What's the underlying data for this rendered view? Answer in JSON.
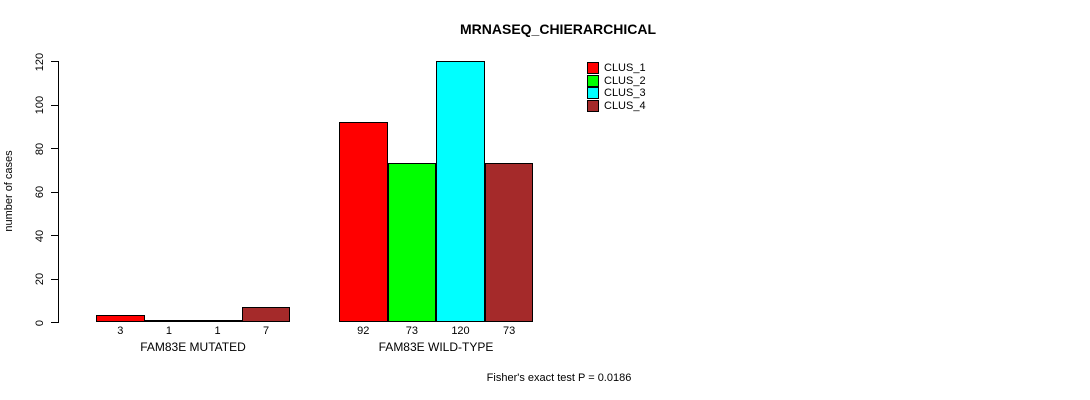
{
  "chart_data": {
    "type": "bar",
    "title": "MRNASEQ_CHIERARCHICAL",
    "ylabel": "number of cases",
    "xlabel": "",
    "ylim": [
      0,
      120
    ],
    "yticks": [
      0,
      20,
      40,
      60,
      80,
      100,
      120
    ],
    "categories": [
      "FAM83E MUTATED",
      "FAM83E WILD-TYPE"
    ],
    "series": [
      {
        "name": "CLUS_1",
        "color": "#ff0000",
        "values": [
          3,
          92
        ]
      },
      {
        "name": "CLUS_2",
        "color": "#00ff00",
        "values": [
          1,
          73
        ]
      },
      {
        "name": "CLUS_3",
        "color": "#00ffff",
        "values": [
          1,
          120
        ]
      },
      {
        "name": "CLUS_4",
        "color": "#a52a2a",
        "values": [
          7,
          73
        ]
      }
    ],
    "bar_value_labels": [
      [
        "3",
        "1",
        "1",
        "7"
      ],
      [
        "92",
        "73",
        "120",
        "73"
      ]
    ],
    "legend_position": "top-right",
    "grid": "off",
    "bar_border_color": "#000000",
    "footnote": "Fisher's exact test P = 0.0186"
  }
}
